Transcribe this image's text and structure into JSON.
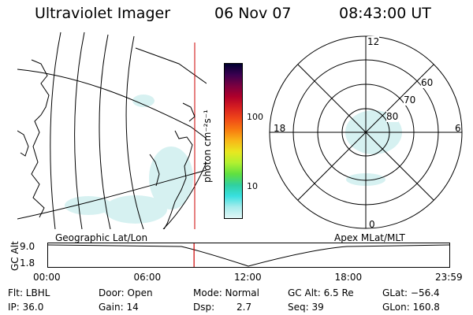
{
  "header": {
    "instrument": "Ultraviolet Imager",
    "date": "06 Nov 07",
    "time": "08:43:00 UT"
  },
  "colorbar": {
    "unit": "photon cm⁻²s⁻¹",
    "ticks": [
      "100",
      "10"
    ],
    "colors": [
      "#000030",
      "#3a0050",
      "#7a0040",
      "#b0002a",
      "#d82020",
      "#f04818",
      "#f87c10",
      "#f8b818",
      "#e8e820",
      "#b0f030",
      "#60e040",
      "#30d0a0",
      "#38e0e0",
      "#a8ecec",
      "#e0f6f6"
    ]
  },
  "map_labels": {
    "left": "Geographic Lat/Lon",
    "right": "Apex MLat/MLT"
  },
  "polar": {
    "mlt_labels": {
      "top": "12",
      "left": "18",
      "right": "6",
      "bottom": "0"
    },
    "lat_labels": [
      "60",
      "70",
      "80"
    ]
  },
  "altitude_plot": {
    "ylabel": "GC Alt",
    "y_ticks": [
      "9.0",
      "1.8"
    ],
    "x_ticks": [
      "00:00",
      "06:00",
      "12:00",
      "18:00",
      "23:59"
    ],
    "current_time_fraction": 0.364,
    "line_color": "#cc0000"
  },
  "footer": {
    "flt": "Flt: LBHL",
    "ip": "IP: 36.0",
    "door": "Door: Open",
    "gain": "Gain: 14",
    "mode": "Mode: Normal",
    "dsp_label": "Dsp:",
    "dsp_value": "2.7",
    "gc_alt": "GC Alt: 6.5 Re",
    "seq": "Seq: 39",
    "glat": "GLat: −56.4",
    "glon": "GLon: 160.8"
  }
}
